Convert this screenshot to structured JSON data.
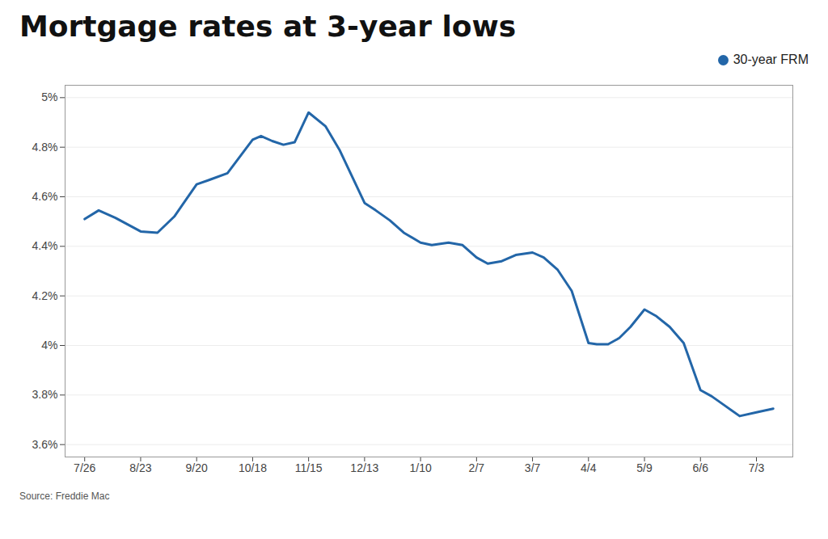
{
  "chart_data": {
    "type": "line",
    "title": "Mortgage rates at 3-year lows",
    "caption": "Source: Freddie Mac",
    "x": [
      0,
      0.25,
      0.55,
      1.0,
      1.3,
      1.6,
      2.0,
      2.25,
      2.55,
      3.0,
      3.15,
      3.35,
      3.55,
      3.75,
      4.0,
      4.3,
      4.55,
      5.0,
      5.2,
      5.45,
      5.7,
      6.0,
      6.2,
      6.5,
      6.75,
      7.0,
      7.2,
      7.45,
      7.7,
      8.0,
      8.2,
      8.45,
      8.7,
      9.0,
      9.15,
      9.35,
      9.55,
      9.75,
      10.0,
      10.2,
      10.45,
      10.7,
      11.0,
      11.2,
      11.45,
      11.7,
      12.0,
      12.3
    ],
    "series": [
      {
        "name": "30-year FRM",
        "color": "#2366a8",
        "values": [
          4.51,
          4.545,
          4.515,
          4.46,
          4.455,
          4.52,
          4.65,
          4.67,
          4.695,
          4.83,
          4.845,
          4.825,
          4.81,
          4.82,
          4.94,
          4.885,
          4.79,
          4.575,
          4.545,
          4.505,
          4.455,
          4.415,
          4.405,
          4.415,
          4.405,
          4.355,
          4.33,
          4.34,
          4.365,
          4.375,
          4.355,
          4.305,
          4.22,
          4.01,
          4.005,
          4.005,
          4.03,
          4.075,
          4.145,
          4.12,
          4.075,
          4.01,
          3.82,
          3.795,
          3.755,
          3.715,
          3.73,
          3.745
        ]
      }
    ],
    "xlim": [
      -0.35,
      12.65
    ],
    "xticks": [
      {
        "value": 0,
        "label": "7/26"
      },
      {
        "value": 1,
        "label": "8/23"
      },
      {
        "value": 2,
        "label": "9/20"
      },
      {
        "value": 3,
        "label": "10/18"
      },
      {
        "value": 4,
        "label": "11/15"
      },
      {
        "value": 5,
        "label": "12/13"
      },
      {
        "value": 6,
        "label": "1/10"
      },
      {
        "value": 7,
        "label": "2/7"
      },
      {
        "value": 8,
        "label": "3/7"
      },
      {
        "value": 9,
        "label": "4/4"
      },
      {
        "value": 10,
        "label": "5/9"
      },
      {
        "value": 11,
        "label": "6/6"
      },
      {
        "value": 12,
        "label": "7/3"
      }
    ],
    "ylim": [
      3.55,
      5.05
    ],
    "yticks": [
      {
        "value": 3.6,
        "label": "3.6%"
      },
      {
        "value": 3.8,
        "label": "3.8%"
      },
      {
        "value": 4.0,
        "label": "4%"
      },
      {
        "value": 4.2,
        "label": "4.2%"
      },
      {
        "value": 4.4,
        "label": "4.4%"
      },
      {
        "value": 4.6,
        "label": "4.6%"
      },
      {
        "value": 4.8,
        "label": "4.8%"
      },
      {
        "value": 5.0,
        "label": "5%"
      }
    ],
    "grid": "y",
    "legend": "upper right"
  }
}
